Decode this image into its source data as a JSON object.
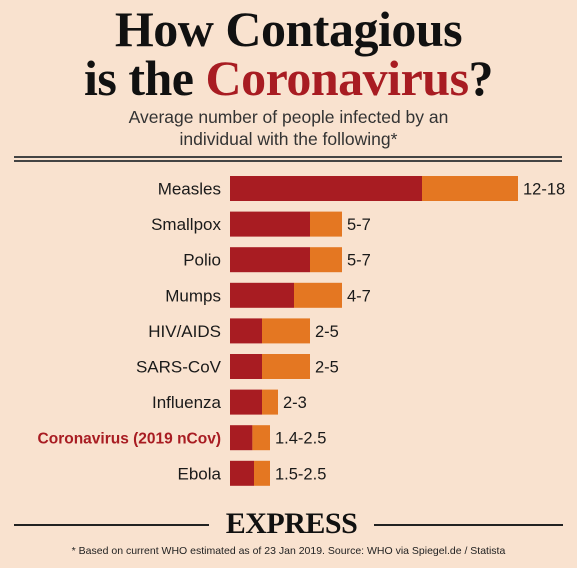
{
  "header": {
    "title_line1": "How Contagious",
    "title_line2_prefix": "is the ",
    "title_line2_accent": "Coronavirus",
    "title_line2_suffix": "?",
    "subtitle_line1": "Average number of people infected by an",
    "subtitle_line2": "individual with the following*"
  },
  "colors": {
    "low": "#a81c22",
    "range": "#e47722",
    "highlight_label": "#a81c22",
    "label": "#1a1a1a",
    "background": "#f9e2cf"
  },
  "chart_data": {
    "type": "bar",
    "orientation": "horizontal",
    "stacked": true,
    "categories": [
      "Measles",
      "Smallpox",
      "Polio",
      "Mumps",
      "HIV/AIDS",
      "SARS-CoV",
      "Influenza",
      "Coronavirus (2019 nCov)",
      "Ebola"
    ],
    "series": [
      {
        "values": [
          12,
          5,
          5,
          4,
          2,
          2,
          2,
          1.4,
          1.5
        ]
      },
      {
        "values": [
          6,
          2,
          2,
          3,
          3,
          3,
          1,
          1.1,
          1
        ]
      }
    ],
    "data_labels": [
      "12-18",
      "5-7",
      "5-7",
      "4-7",
      "2-5",
      "2-5",
      "2-3",
      "1.4-2.5",
      "1.5-2.5"
    ],
    "highlight": "Coronavirus (2019 nCov)",
    "xlim": [
      0,
      18
    ]
  },
  "footer": {
    "brand": "EXPRESS",
    "footnote": "* Based on current WHO estimated as of 23 Jan 2019. Source: WHO via Spiegel.de / Statista"
  }
}
